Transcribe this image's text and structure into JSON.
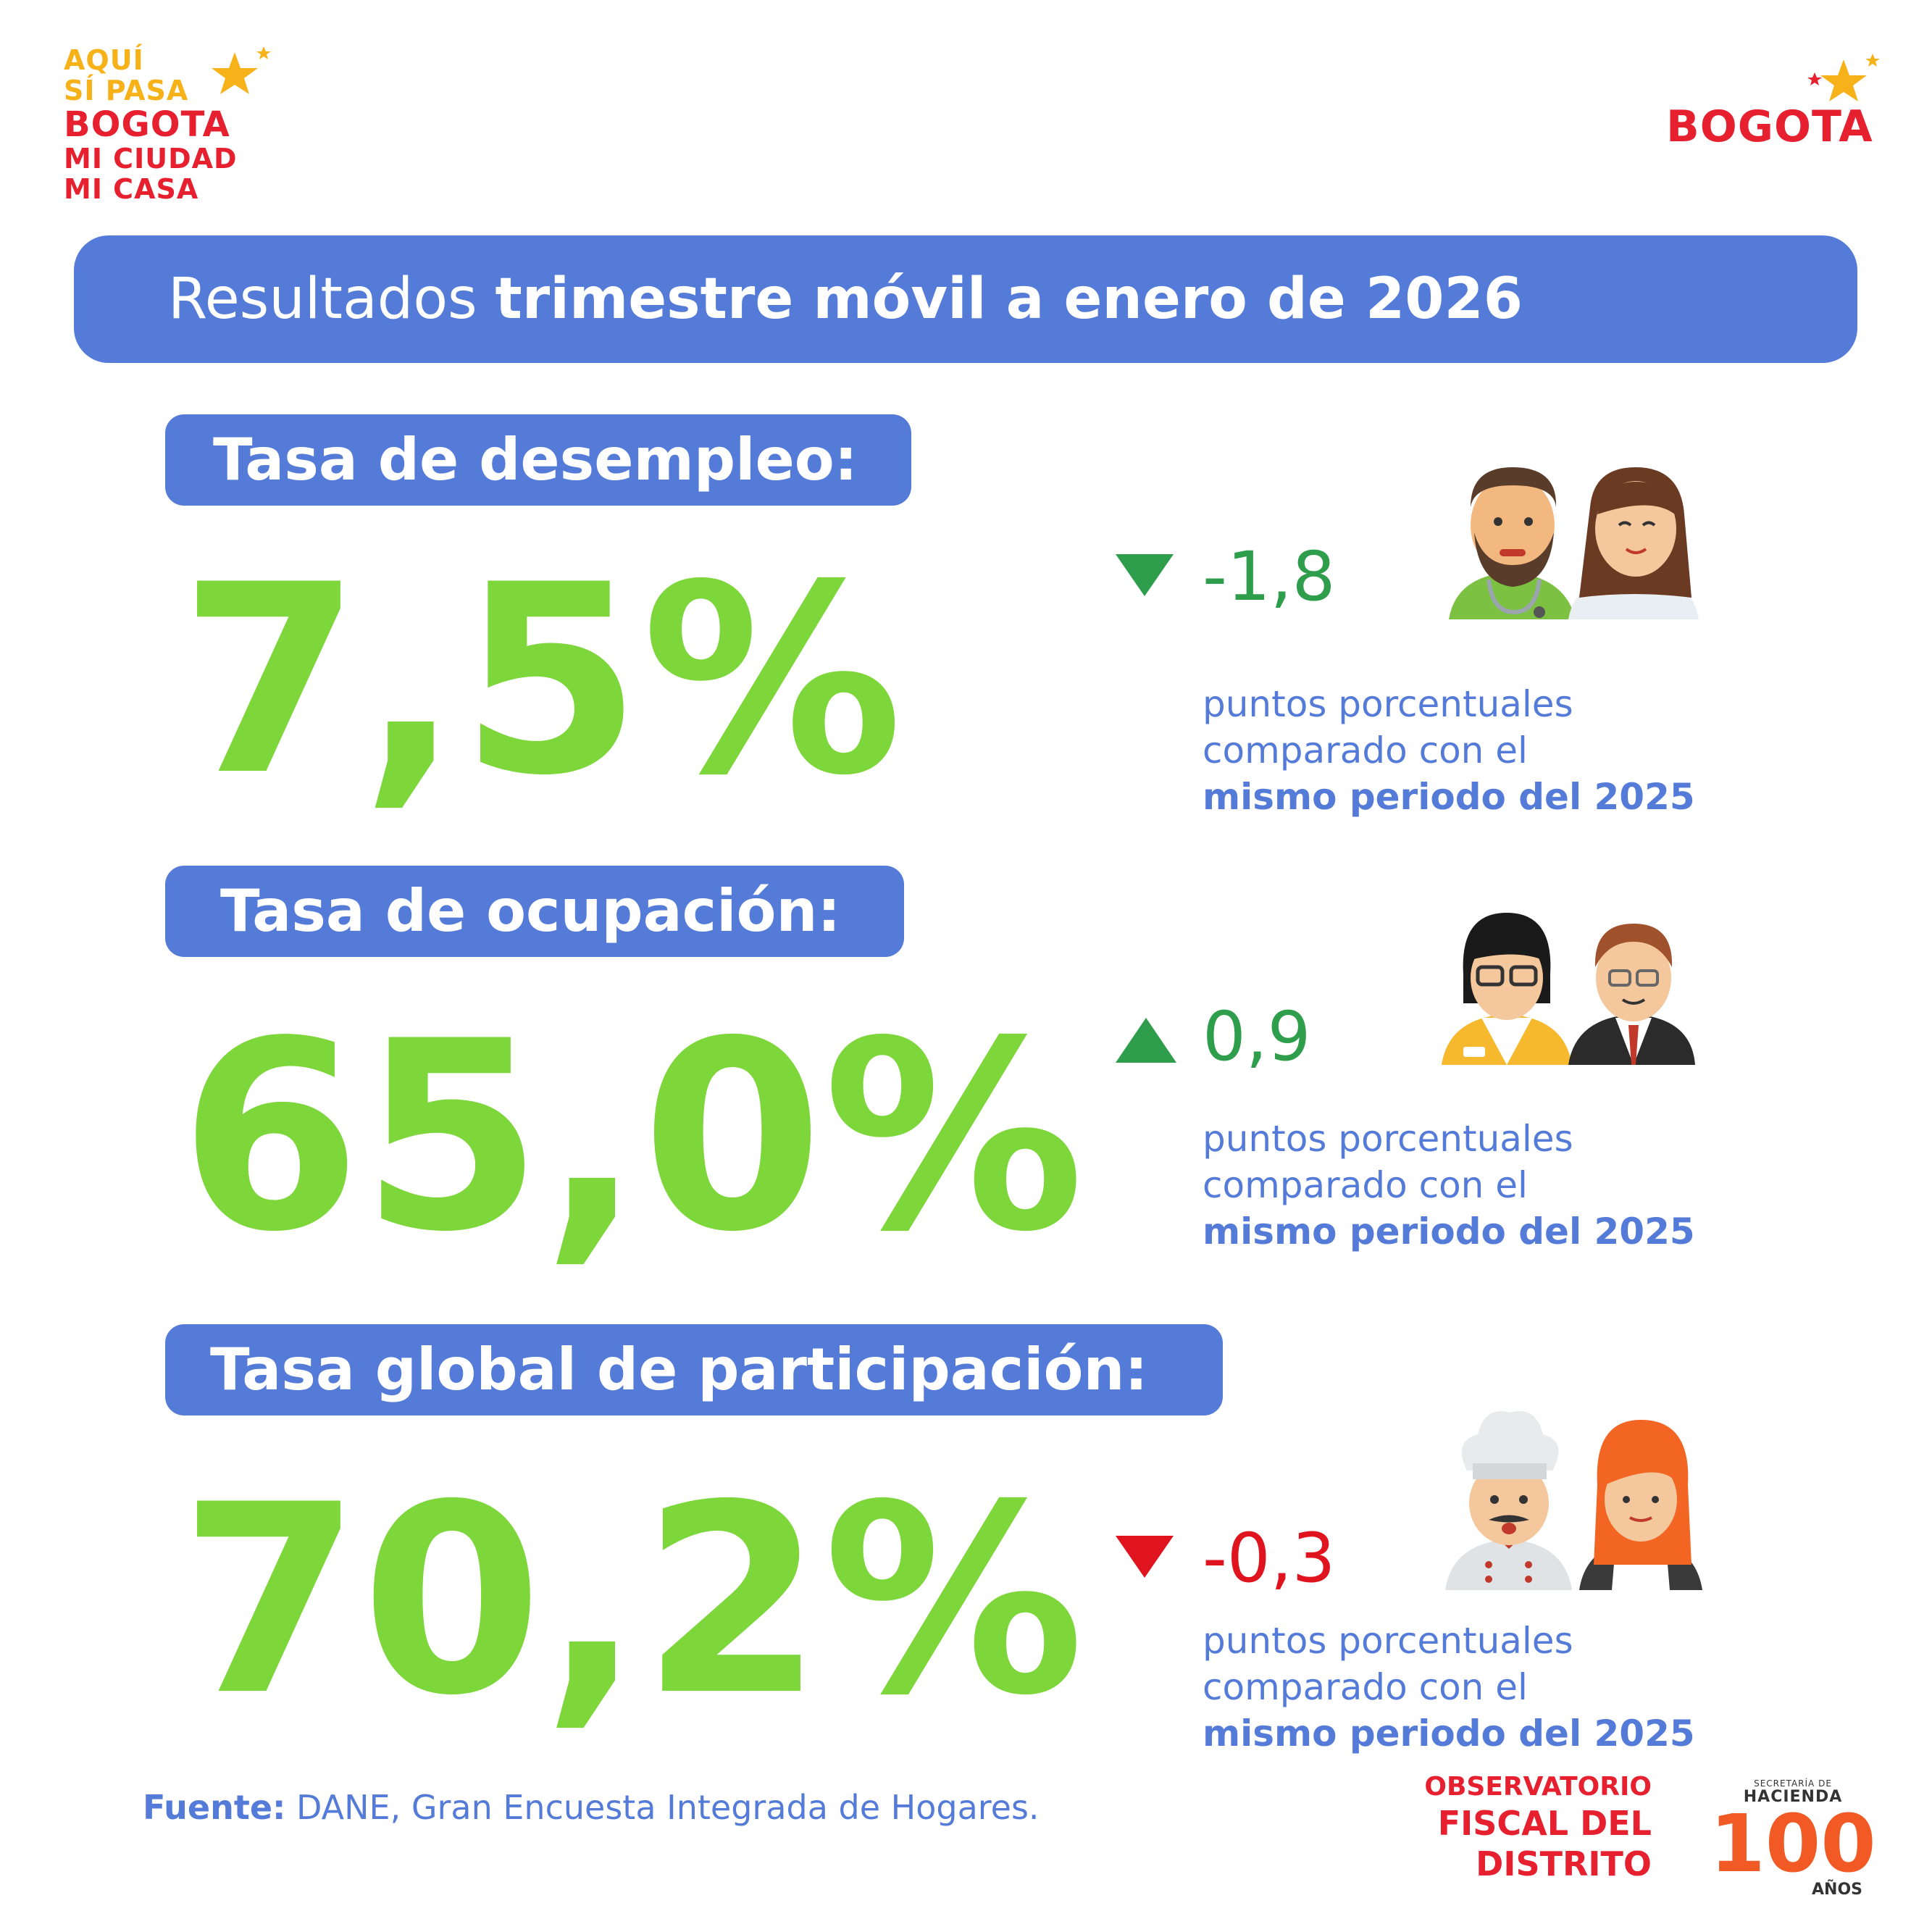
{
  "logos": {
    "campaign": {
      "line1": "AQUÍ",
      "line2": "SÍ PASA",
      "line3": "BOGOTA",
      "line4": "MI CIUDAD",
      "line5": "MI CASA"
    },
    "city": "BOGOTA"
  },
  "header": {
    "light": "Resultados",
    "bold": "trimestre móvil a enero de 2026"
  },
  "sections": [
    {
      "label": "Tasa de desempleo:",
      "value": "7,5%",
      "delta": "-1,8",
      "direction": "down",
      "delta_color": "#2f9e4c",
      "note": {
        "l1": "puntos porcentuales",
        "l2": "comparado con el",
        "l3": "mismo periodo del 2025"
      },
      "icons": [
        "doctor-icon",
        "nurse-icon"
      ]
    },
    {
      "label": "Tasa de ocupación:",
      "value": "65,0%",
      "delta": "0,9",
      "direction": "up",
      "delta_color": "#2f9e4c",
      "note": {
        "l1": "puntos porcentuales",
        "l2": "comparado con el",
        "l3": "mismo periodo del 2025"
      },
      "icons": [
        "worker-woman-icon",
        "businessman-icon"
      ]
    },
    {
      "label": "Tasa global de participación:",
      "value": "70,2%",
      "delta": "-0,3",
      "direction": "down",
      "delta_color": "#e0141e",
      "note": {
        "l1": "puntos porcentuales",
        "l2": "comparado con el",
        "l3": "mismo periodo del 2025"
      },
      "icons": [
        "chef-icon",
        "waitress-icon"
      ]
    }
  ],
  "footer": {
    "source_label": "Fuente:",
    "source_text": "DANE, Gran Encuesta Integrada de Hogares.",
    "observatory_l1": "OBSERVATORIO",
    "observatory_l2": "FISCAL DEL DISTRITO",
    "hacienda_l1": "SECRETARÍA DE",
    "hacienda_l2": "HACIENDA",
    "hacienda_num": "100",
    "hacienda_l3": "AÑOS"
  },
  "colors": {
    "accent": "#557bd9",
    "value_green": "#7dd63a",
    "up_green": "#2f9e4c",
    "down_red": "#e0141e",
    "brand_red": "#e6202f",
    "brand_yellow": "#f7b21a"
  }
}
